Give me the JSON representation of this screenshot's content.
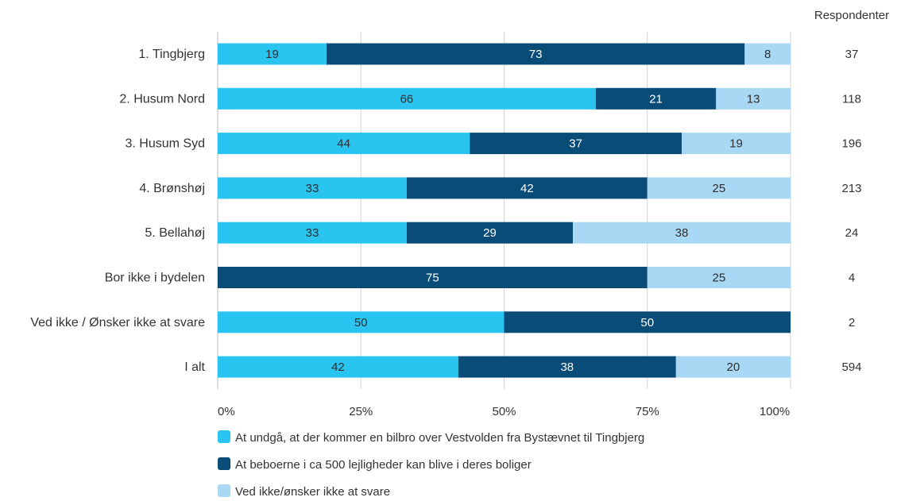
{
  "chart_data": {
    "type": "bar",
    "orientation": "horizontal",
    "stacked": true,
    "normalized": true,
    "categories": [
      "1. Tingbjerg",
      "2. Husum Nord",
      "3. Husum Syd",
      "4. Brønshøj",
      "5. Bellahøj",
      "Bor ikke i bydelen",
      "Ved ikke / Ønsker ikke at svare",
      "I alt"
    ],
    "series": [
      {
        "name": "At undgå, at der kommer en bilbro over Vestvolden fra Bystævnet til Tingbjerg",
        "color": "#29c5f0",
        "values": [
          19,
          66,
          44,
          33,
          33,
          0,
          50,
          42
        ]
      },
      {
        "name": "At beboerne i ca 500 lejligheder kan blive i deres boliger",
        "color": "#0a4c78",
        "values": [
          73,
          21,
          37,
          42,
          29,
          75,
          50,
          38
        ]
      },
      {
        "name": "Ved ikke/ønsker ikke at svare",
        "color": "#a8d8f4",
        "values": [
          8,
          13,
          19,
          25,
          38,
          25,
          0,
          20
        ]
      }
    ],
    "x_ticks": [
      "0%",
      "25%",
      "50%",
      "75%",
      "100%"
    ],
    "xlim": [
      0,
      100
    ],
    "grid": true,
    "legend_position": "bottom",
    "respondents_header": "Respondenter",
    "respondents": [
      "37",
      "118",
      "196",
      "213",
      "24",
      "4",
      "2",
      "594"
    ]
  }
}
